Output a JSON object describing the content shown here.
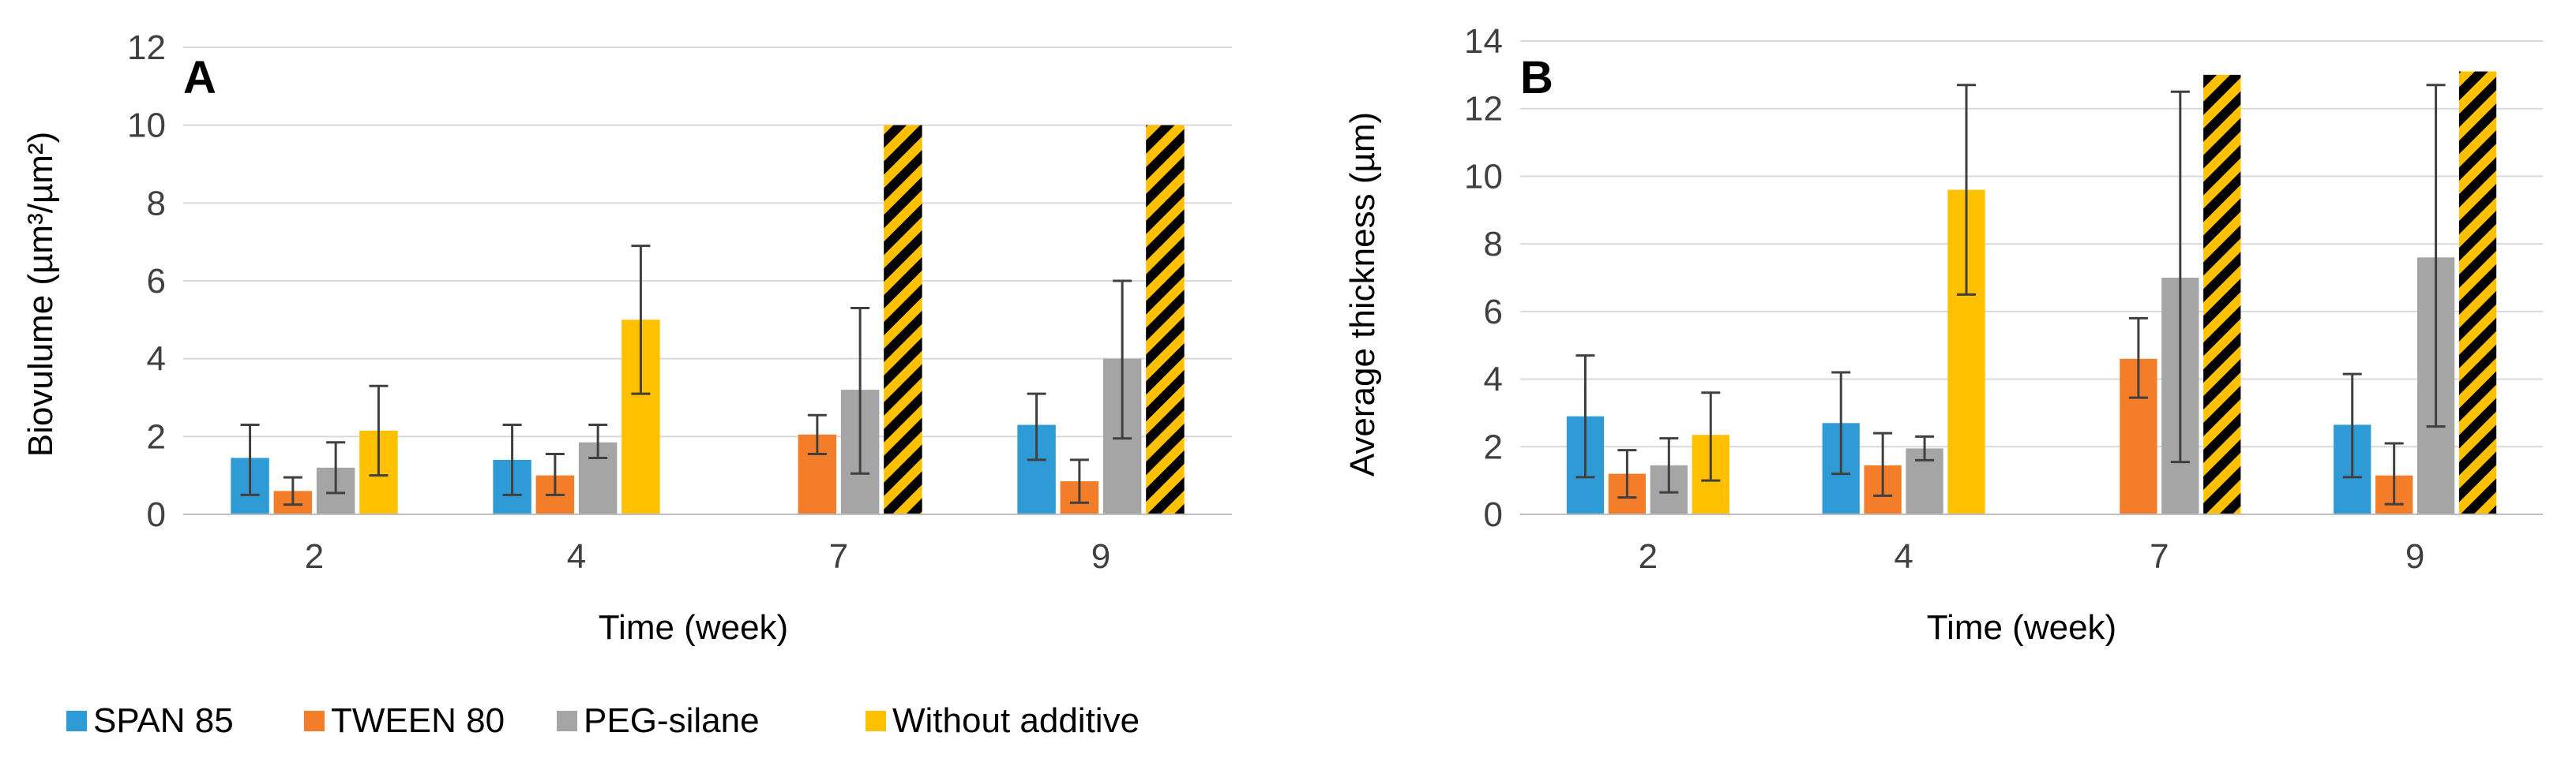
{
  "colors": {
    "SPAN 85": "#2f9bd6",
    "TWEEN 80": "#f47d2a",
    "PEG-silane": "#a5a5a5",
    "Without additive": "#ffc000",
    "grid": "#d9d9d9",
    "axis": "#bfbfbf",
    "error_bar": "#404040"
  },
  "legend": {
    "items": [
      {
        "label": "SPAN 85",
        "color": "#2f9bd6"
      },
      {
        "label": "TWEEN 80",
        "color": "#f47d2a"
      },
      {
        "label": "PEG-silane",
        "color": "#a5a5a5"
      },
      {
        "label": "Without additive",
        "color": "#ffc000"
      }
    ]
  },
  "chart_data": [
    {
      "panel": "A",
      "type": "bar",
      "title": "",
      "xlabel": "Time (week)",
      "ylabel": "Biovulume (µm³/µm²)",
      "ylim": [
        0,
        12
      ],
      "yticks": [
        0,
        2,
        4,
        6,
        8,
        10,
        12
      ],
      "grid": true,
      "categories": [
        "2",
        "4",
        "7",
        "9"
      ],
      "series": [
        {
          "name": "SPAN 85",
          "values": [
            1.45,
            1.4,
            null,
            2.3
          ],
          "err_low": [
            0.5,
            0.5,
            null,
            1.4
          ],
          "err_high": [
            2.3,
            2.3,
            null,
            3.1
          ]
        },
        {
          "name": "TWEEN 80",
          "values": [
            0.6,
            1.0,
            2.05,
            0.85
          ],
          "err_low": [
            0.25,
            0.5,
            1.55,
            0.3
          ],
          "err_high": [
            0.95,
            1.55,
            2.55,
            1.4
          ]
        },
        {
          "name": "PEG-silane",
          "values": [
            1.2,
            1.85,
            3.2,
            4.0
          ],
          "err_low": [
            0.55,
            1.45,
            1.05,
            1.95
          ],
          "err_high": [
            1.85,
            2.3,
            5.3,
            6.0
          ]
        },
        {
          "name": "Without additive",
          "values": [
            2.15,
            5.0,
            10.0,
            10.0
          ],
          "err_low": [
            1.0,
            3.1,
            null,
            null
          ],
          "err_high": [
            3.3,
            6.9,
            null,
            null
          ],
          "hatched": [
            false,
            false,
            true,
            true
          ]
        }
      ]
    },
    {
      "panel": "B",
      "type": "bar",
      "title": "",
      "xlabel": "Time (week)",
      "ylabel": "Average thickness  (µm)",
      "ylim": [
        0,
        14
      ],
      "yticks": [
        0,
        2,
        4,
        6,
        8,
        10,
        12,
        14
      ],
      "grid": true,
      "categories": [
        "2",
        "4",
        "7",
        "9"
      ],
      "series": [
        {
          "name": "SPAN 85",
          "values": [
            2.9,
            2.7,
            null,
            2.65
          ],
          "err_low": [
            1.1,
            1.2,
            null,
            1.1
          ],
          "err_high": [
            4.7,
            4.2,
            null,
            4.15
          ]
        },
        {
          "name": "TWEEN 80",
          "values": [
            1.2,
            1.45,
            4.6,
            1.15
          ],
          "err_low": [
            0.5,
            0.55,
            3.45,
            0.3
          ],
          "err_high": [
            1.9,
            2.4,
            5.8,
            2.1
          ]
        },
        {
          "name": "PEG-silane",
          "values": [
            1.45,
            1.95,
            7.0,
            7.6
          ],
          "err_low": [
            0.65,
            1.6,
            1.55,
            2.6
          ],
          "err_high": [
            2.25,
            2.3,
            12.5,
            12.7
          ]
        },
        {
          "name": "Without additive",
          "values": [
            2.35,
            9.6,
            13.0,
            13.1
          ],
          "err_low": [
            1.0,
            6.5,
            null,
            null
          ],
          "err_high": [
            3.6,
            12.7,
            null,
            null
          ],
          "hatched": [
            false,
            false,
            true,
            true
          ]
        }
      ]
    }
  ]
}
